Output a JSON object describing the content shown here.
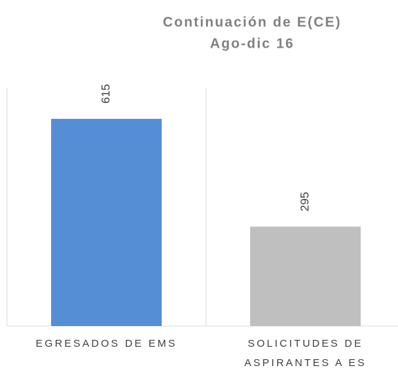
{
  "chart_data": {
    "type": "bar",
    "title": "Continuación de E(CE)",
    "subtitle": "Ago-dic 16",
    "categories": [
      "EGRESADOS DE EMS",
      "SOLICITUDES DE ASPIRANTES A ES"
    ],
    "values": [
      615,
      295
    ],
    "colors": [
      "#558ed5",
      "#bfbfbf"
    ]
  }
}
